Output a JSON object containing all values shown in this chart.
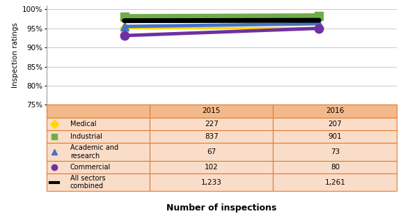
{
  "years": [
    2015,
    2016
  ],
  "series": [
    {
      "name": "Medical",
      "color": "#FFD700",
      "marker": "D",
      "markersize": 7,
      "linewidth": 2.5,
      "values": [
        95.2,
        95.2
      ],
      "zorder": 3
    },
    {
      "name": "Industrial",
      "color": "#70AD47",
      "marker": "s",
      "markersize": 9,
      "linewidth": 5,
      "values": [
        98.1,
        98.3
      ],
      "zorder": 4
    },
    {
      "name": "Academic and research",
      "color": "#4472C4",
      "marker": "^",
      "markersize": 8,
      "linewidth": 3.5,
      "values": [
        95.5,
        96.2
      ],
      "zorder": 5
    },
    {
      "name": "Commercial",
      "color": "#7030A0",
      "marker": "o",
      "markersize": 9,
      "linewidth": 3.5,
      "values": [
        93.1,
        95.0
      ],
      "zorder": 6
    },
    {
      "name": "All sectors combined",
      "color": "#000000",
      "marker": null,
      "markersize": 0,
      "linewidth": 5,
      "values": [
        97.0,
        97.1
      ],
      "zorder": 7
    }
  ],
  "ylabel": "Inspection ratings",
  "xlabel": "Number of inspections",
  "ylim": [
    75,
    101
  ],
  "yticks": [
    75,
    80,
    85,
    90,
    95,
    100
  ],
  "ytick_labels": [
    "75%",
    "80%",
    "85%",
    "90%",
    "95%",
    "100%"
  ],
  "table_header_bg": "#F4B98A",
  "table_row_bg": "#FADDC8",
  "table_border_color": "#E07A30",
  "table_rows": [
    {
      "label": "Medical",
      "marker": "D",
      "color": "#FFD700",
      "is_line": false,
      "vals": [
        "227",
        "207"
      ]
    },
    {
      "label": "Industrial",
      "marker": "s",
      "color": "#70AD47",
      "is_line": false,
      "vals": [
        "837",
        "901"
      ]
    },
    {
      "label": "Academic and\nresearch",
      "marker": "^",
      "color": "#4472C4",
      "is_line": false,
      "vals": [
        "67",
        "73"
      ]
    },
    {
      "label": "Commercial",
      "marker": "o",
      "color": "#7030A0",
      "is_line": false,
      "vals": [
        "102",
        "80"
      ]
    },
    {
      "label": "All sectors\ncombined",
      "marker": "-",
      "color": "#000000",
      "is_line": true,
      "vals": [
        "1,233",
        "1,261"
      ]
    }
  ],
  "background_color": "#FFFFFF",
  "plot_bg": "#FFFFFF",
  "grid_color": "#C0C0C0"
}
